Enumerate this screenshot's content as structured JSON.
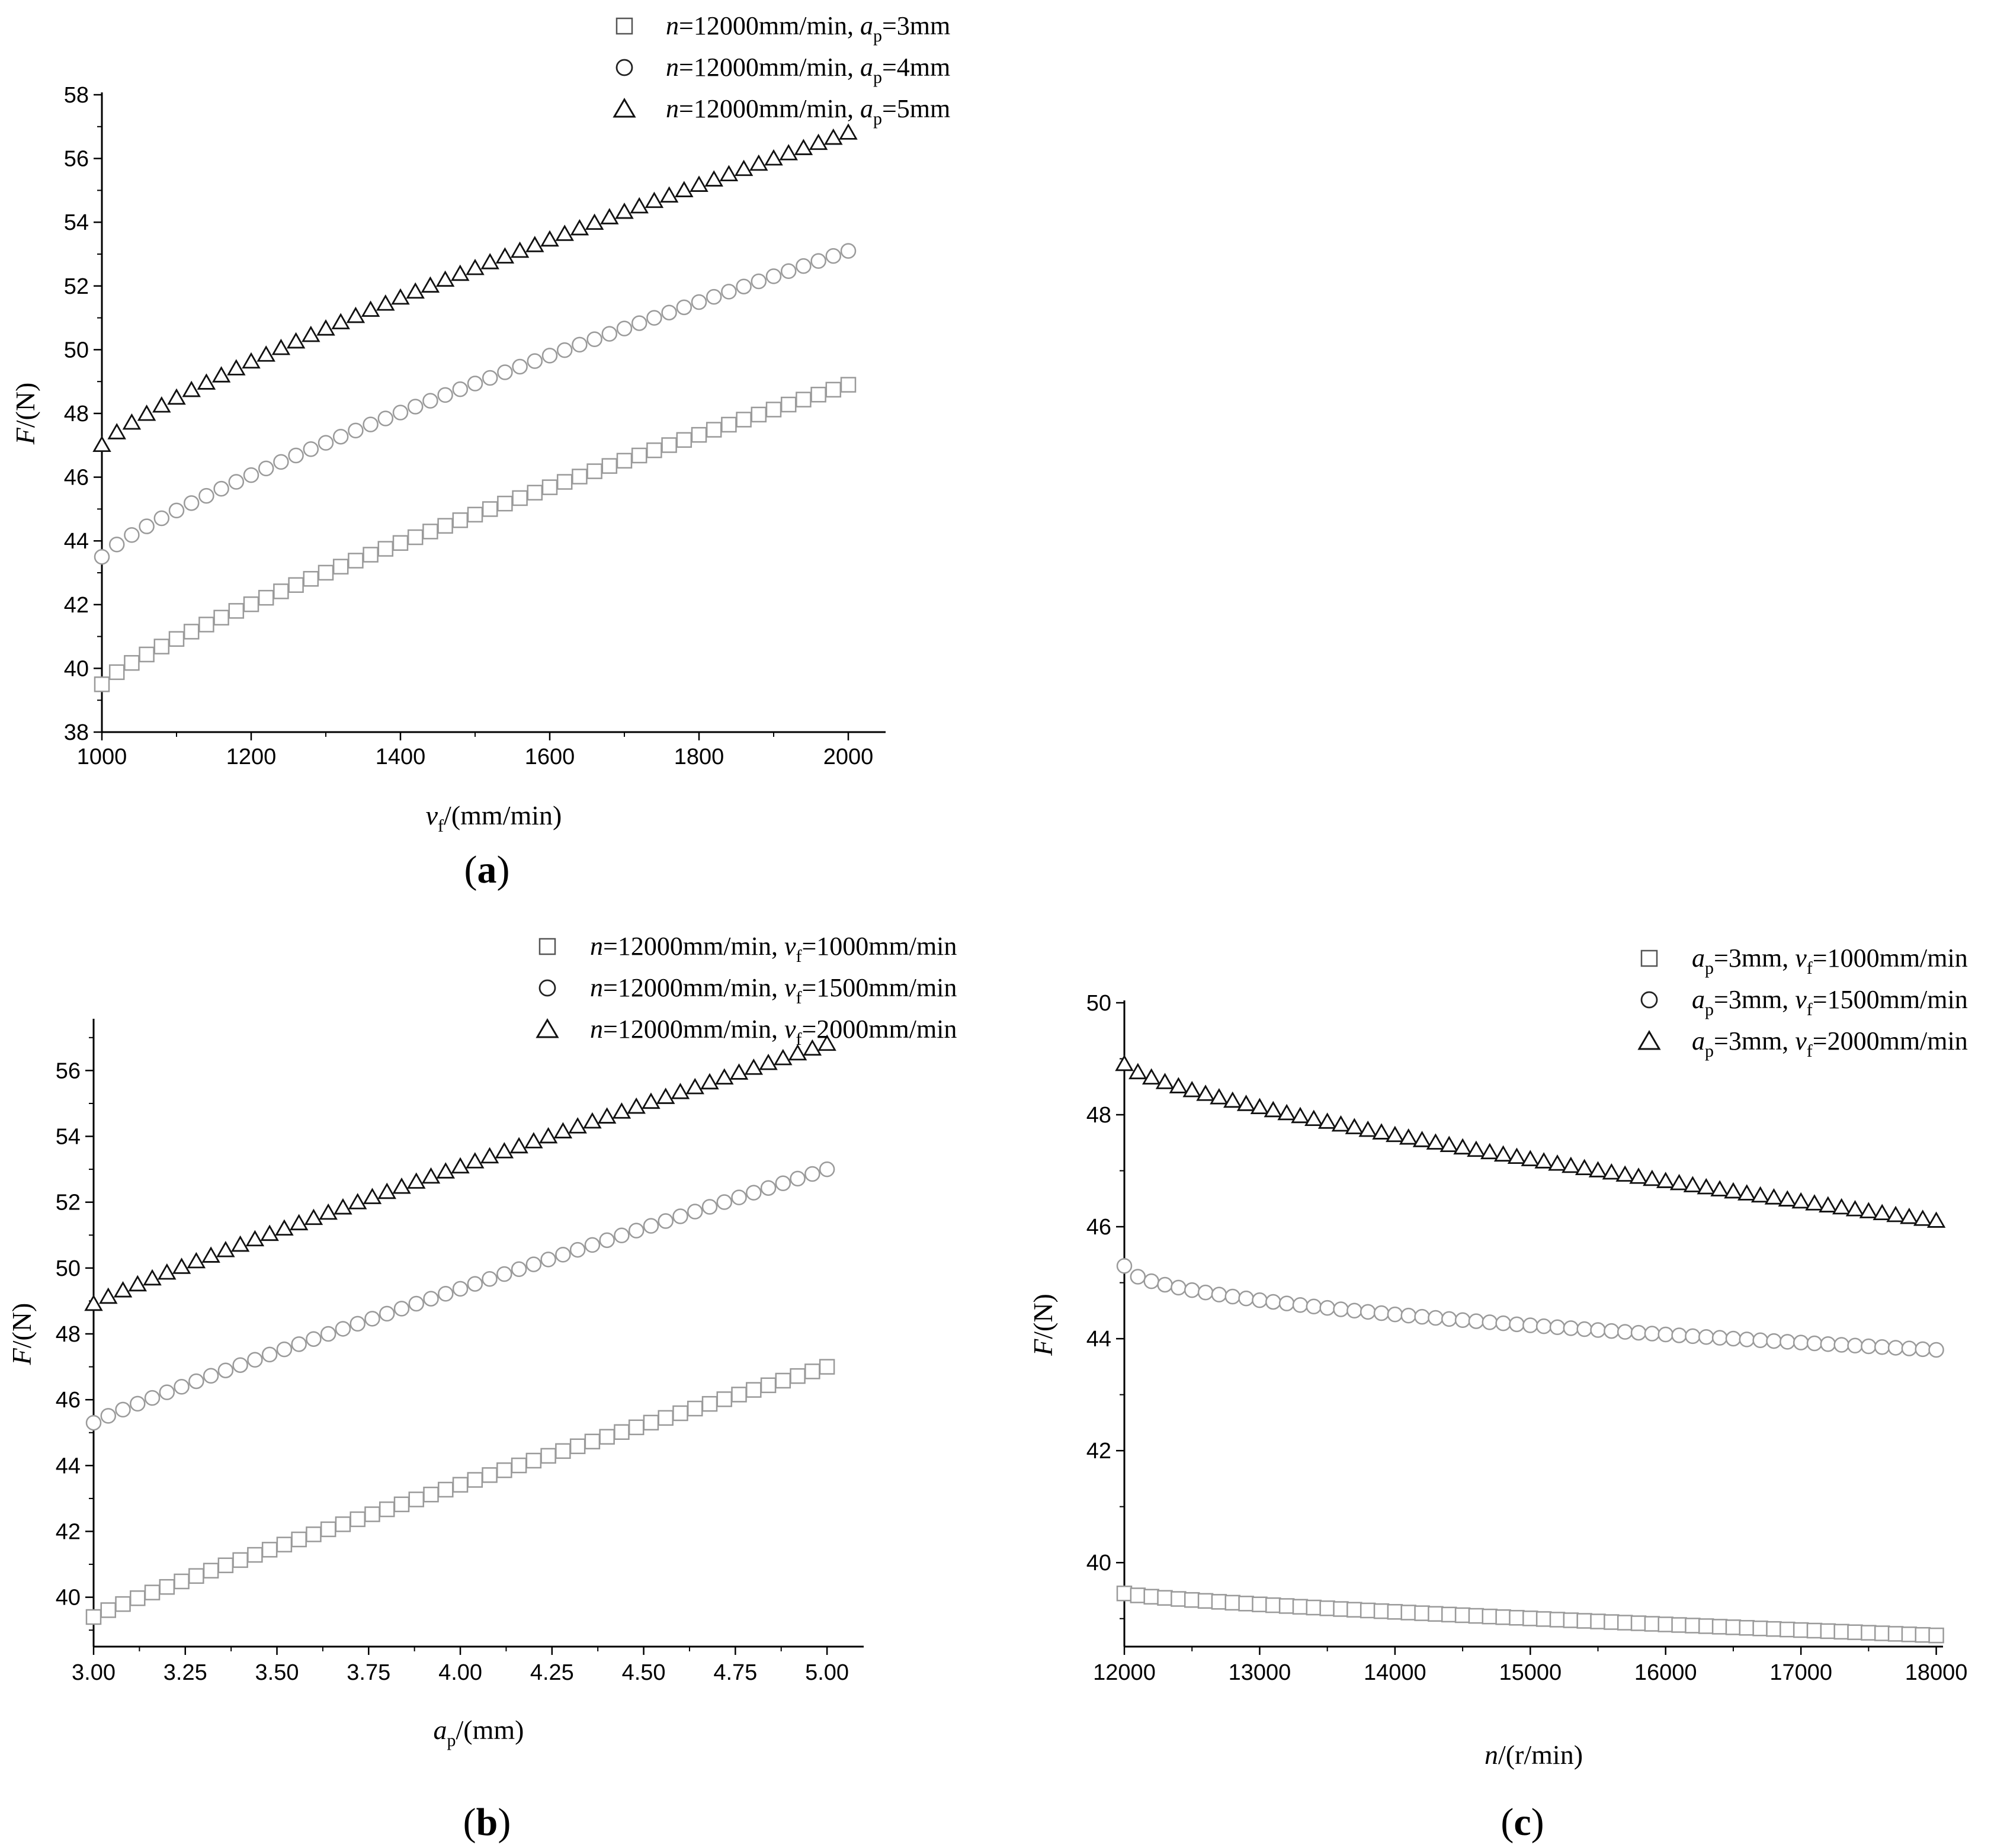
{
  "chart_data": [
    {
      "panel": "(a)",
      "panel_letter": "a",
      "type": "scatter",
      "xaxis": {
        "var": "v",
        "sub": "f",
        "unit": "/(mm/min)",
        "range": [
          1000,
          2050
        ],
        "ticks": [
          1000,
          1200,
          1400,
          1600,
          1800,
          2000
        ],
        "labels": [
          "1000",
          "1200",
          "1400",
          "1600",
          "1800",
          "2000"
        ]
      },
      "yaxis": {
        "var": "F",
        "unit": "/(N)",
        "range": [
          38,
          58
        ],
        "ticks": [
          38,
          40,
          42,
          44,
          46,
          48,
          50,
          52,
          54,
          56,
          58
        ],
        "labels": [
          "38",
          "40",
          "42",
          "44",
          "46",
          "48",
          "50",
          "52",
          "54",
          "56",
          "58"
        ]
      },
      "series": [
        {
          "marker": "square",
          "legend": {
            "a": "n",
            "b": "=12000mm/min, ",
            "c": "a",
            "d": "p",
            "e": "=3mm"
          },
          "x_start": 1000,
          "x_end": 2000,
          "n": 51,
          "y_start": 39.5,
          "y_end": 48.9,
          "power": 0.82
        },
        {
          "marker": "circle",
          "legend": {
            "a": "n",
            "b": "=12000mm/min, ",
            "c": "a",
            "d": "p",
            "e": "=4mm"
          },
          "x_start": 1000,
          "x_end": 2000,
          "n": 51,
          "y_start": 43.5,
          "y_end": 53.1,
          "power": 0.82
        },
        {
          "marker": "triangle",
          "legend": {
            "a": "n",
            "b": "=12000mm/min, ",
            "c": "a",
            "d": "p",
            "e": "=5mm"
          },
          "x_start": 1000,
          "x_end": 2000,
          "n": 51,
          "y_start": 47.0,
          "y_end": 56.8,
          "power": 0.82
        }
      ]
    },
    {
      "panel": "(b)",
      "panel_letter": "b",
      "type": "scatter",
      "xaxis": {
        "var": "a",
        "sub": "p",
        "unit": "/(mm)",
        "range": [
          3.0,
          5.1
        ],
        "ticks": [
          3.0,
          3.25,
          3.5,
          3.75,
          4.0,
          4.25,
          4.5,
          4.75,
          5.0
        ],
        "labels": [
          "3.00",
          "3.25",
          "3.50",
          "3.75",
          "4.00",
          "4.25",
          "4.50",
          "4.75",
          "5.00"
        ]
      },
      "yaxis": {
        "var": "F",
        "unit": "/(N)",
        "range": [
          38.5,
          57.5
        ],
        "ticks": [
          40,
          42,
          44,
          46,
          48,
          50,
          52,
          54,
          56
        ],
        "labels": [
          "40",
          "42",
          "44",
          "46",
          "48",
          "50",
          "52",
          "54",
          "56"
        ]
      },
      "series": [
        {
          "marker": "square",
          "legend": {
            "a": "n",
            "b": "=12000mm/min, ",
            "c": "v",
            "d": "f",
            "e": "=1000mm/min"
          },
          "x_start": 3.0,
          "x_end": 5.0,
          "n": 51,
          "y_start": 39.4,
          "y_end": 47.0,
          "power": 0.92
        },
        {
          "marker": "circle",
          "legend": {
            "a": "n",
            "b": "=12000mm/min, ",
            "c": "v",
            "d": "f",
            "e": "=1500mm/min"
          },
          "x_start": 3.0,
          "x_end": 5.0,
          "n": 51,
          "y_start": 45.3,
          "y_end": 53.0,
          "power": 0.92
        },
        {
          "marker": "triangle",
          "legend": {
            "a": "n",
            "b": "=12000mm/min, ",
            "c": "v",
            "d": "f",
            "e": "=2000mm/min"
          },
          "x_start": 3.0,
          "x_end": 5.0,
          "n": 51,
          "y_start": 48.9,
          "y_end": 56.8,
          "power": 0.92
        }
      ]
    },
    {
      "panel": "(c)",
      "panel_letter": "c",
      "type": "scatter",
      "xaxis": {
        "var": "n",
        "sub": "",
        "unit": "/(r/min)",
        "range": [
          12000,
          18050
        ],
        "ticks": [
          12000,
          13000,
          14000,
          15000,
          16000,
          17000,
          18000
        ],
        "labels": [
          "12000",
          "13000",
          "14000",
          "15000",
          "16000",
          "17000",
          "18000"
        ]
      },
      "yaxis": {
        "var": "F",
        "unit": "/(N)",
        "range": [
          38.5,
          50
        ],
        "ticks": [
          40,
          42,
          44,
          46,
          48,
          50
        ],
        "labels": [
          "40",
          "42",
          "44",
          "46",
          "48",
          "50"
        ]
      },
      "series": [
        {
          "marker": "square",
          "legend": {
            "a": "a",
            "b": "",
            "c": "",
            "d": "",
            "sub1": "p",
            "mid": "=3mm, ",
            "c2": "v",
            "d2": "f",
            "e": "=1000mm/min"
          },
          "x_start": 12000,
          "x_end": 18000,
          "n": 61,
          "y_start": 39.45,
          "y_end": 38.7,
          "power": 0.75
        },
        {
          "marker": "circle",
          "legend": {
            "a": "a",
            "sub1": "p",
            "mid": "=3mm, ",
            "c2": "v",
            "d2": "f",
            "e": "=1500mm/min"
          },
          "x_start": 12000,
          "x_end": 18000,
          "n": 61,
          "y_start": 45.3,
          "y_end": 43.8,
          "power": 0.5
        },
        {
          "marker": "triangle",
          "legend": {
            "a": "a",
            "sub1": "p",
            "mid": "=3mm, ",
            "c2": "v",
            "d2": "f",
            "e": "=2000mm/min"
          },
          "x_start": 12000,
          "x_end": 18000,
          "n": 61,
          "y_start": 48.9,
          "y_end": 46.1,
          "power": 0.72
        }
      ]
    }
  ]
}
